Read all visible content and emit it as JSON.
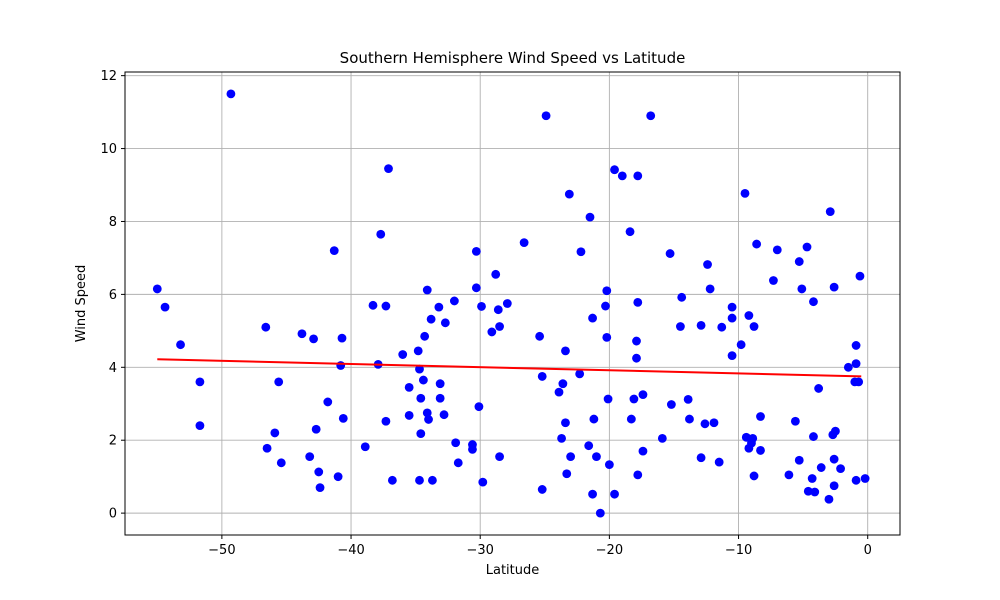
{
  "chart_data": {
    "type": "scatter",
    "title": "Southern Hemisphere Wind Speed vs Latitude",
    "xlabel": "Latitude",
    "ylabel": "Wind Speed",
    "xlim": [
      -57.5,
      2.5
    ],
    "ylim": [
      -0.6,
      12.1
    ],
    "xticks": [
      -50,
      -40,
      -30,
      -20,
      -10,
      0
    ],
    "yticks": [
      0,
      2,
      4,
      6,
      8,
      10,
      12
    ],
    "grid": true,
    "colors": {
      "points": "#0000ff",
      "regression": "#ff0000"
    },
    "regression": {
      "x": [
        -55,
        -0.5
      ],
      "y": [
        4.22,
        3.75
      ]
    },
    "points": [
      {
        "x": -55,
        "y": 6.15
      },
      {
        "x": -54.4,
        "y": 5.65
      },
      {
        "x": -53.2,
        "y": 4.62
      },
      {
        "x": -51.7,
        "y": 3.6
      },
      {
        "x": -51.7,
        "y": 2.4
      },
      {
        "x": -49.3,
        "y": 11.5
      },
      {
        "x": -46.6,
        "y": 5.1
      },
      {
        "x": -46.5,
        "y": 1.78
      },
      {
        "x": -45.9,
        "y": 2.2
      },
      {
        "x": -45.6,
        "y": 3.6
      },
      {
        "x": -45.4,
        "y": 1.38
      },
      {
        "x": -43.8,
        "y": 4.92
      },
      {
        "x": -43.2,
        "y": 1.55
      },
      {
        "x": -42.9,
        "y": 4.78
      },
      {
        "x": -42.7,
        "y": 2.3
      },
      {
        "x": -42.5,
        "y": 1.13
      },
      {
        "x": -42.4,
        "y": 0.7
      },
      {
        "x": -41.8,
        "y": 3.05
      },
      {
        "x": -41.3,
        "y": 7.2
      },
      {
        "x": -41.0,
        "y": 1.0
      },
      {
        "x": -40.8,
        "y": 4.05
      },
      {
        "x": -40.7,
        "y": 4.8
      },
      {
        "x": -40.6,
        "y": 2.6
      },
      {
        "x": -38.9,
        "y": 1.82
      },
      {
        "x": -38.3,
        "y": 5.7
      },
      {
        "x": -37.9,
        "y": 4.08
      },
      {
        "x": -37.7,
        "y": 7.65
      },
      {
        "x": -37.3,
        "y": 5.68
      },
      {
        "x": -37.3,
        "y": 2.52
      },
      {
        "x": -37.1,
        "y": 9.45
      },
      {
        "x": -36.8,
        "y": 0.9
      },
      {
        "x": -36.0,
        "y": 4.35
      },
      {
        "x": -35.5,
        "y": 3.45
      },
      {
        "x": -35.5,
        "y": 2.68
      },
      {
        "x": -34.8,
        "y": 4.45
      },
      {
        "x": -34.7,
        "y": 3.95
      },
      {
        "x": -34.6,
        "y": 2.18
      },
      {
        "x": -34.6,
        "y": 3.15
      },
      {
        "x": -34.7,
        "y": 0.9
      },
      {
        "x": -34.4,
        "y": 3.65
      },
      {
        "x": -34.3,
        "y": 4.85
      },
      {
        "x": -34.1,
        "y": 6.12
      },
      {
        "x": -34.1,
        "y": 2.75
      },
      {
        "x": -34.0,
        "y": 2.57
      },
      {
        "x": -33.8,
        "y": 5.32
      },
      {
        "x": -33.7,
        "y": 0.9
      },
      {
        "x": -33.2,
        "y": 5.65
      },
      {
        "x": -33.1,
        "y": 3.55
      },
      {
        "x": -33.1,
        "y": 3.15
      },
      {
        "x": -32.8,
        "y": 2.7
      },
      {
        "x": -32.7,
        "y": 5.22
      },
      {
        "x": -32.0,
        "y": 5.82
      },
      {
        "x": -31.9,
        "y": 1.93
      },
      {
        "x": -31.7,
        "y": 1.38
      },
      {
        "x": -30.6,
        "y": 1.88
      },
      {
        "x": -30.6,
        "y": 1.75
      },
      {
        "x": -30.3,
        "y": 6.18
      },
      {
        "x": -30.3,
        "y": 7.18
      },
      {
        "x": -30.1,
        "y": 2.92
      },
      {
        "x": -29.9,
        "y": 5.67
      },
      {
        "x": -29.8,
        "y": 0.85
      },
      {
        "x": -29.1,
        "y": 4.97
      },
      {
        "x": -28.8,
        "y": 6.55
      },
      {
        "x": -28.6,
        "y": 5.58
      },
      {
        "x": -28.5,
        "y": 5.12
      },
      {
        "x": -28.5,
        "y": 1.55
      },
      {
        "x": -27.9,
        "y": 5.75
      },
      {
        "x": -26.6,
        "y": 7.42
      },
      {
        "x": -25.4,
        "y": 4.85
      },
      {
        "x": -25.2,
        "y": 3.75
      },
      {
        "x": -25.2,
        "y": 0.65
      },
      {
        "x": -24.9,
        "y": 10.9
      },
      {
        "x": -23.9,
        "y": 3.32
      },
      {
        "x": -23.7,
        "y": 2.05
      },
      {
        "x": -23.6,
        "y": 3.55
      },
      {
        "x": -23.4,
        "y": 4.45
      },
      {
        "x": -23.4,
        "y": 2.48
      },
      {
        "x": -23.3,
        "y": 1.08
      },
      {
        "x": -23.1,
        "y": 8.75
      },
      {
        "x": -23.0,
        "y": 1.55
      },
      {
        "x": -22.3,
        "y": 3.82
      },
      {
        "x": -22.2,
        "y": 7.17
      },
      {
        "x": -21.6,
        "y": 1.85
      },
      {
        "x": -21.5,
        "y": 8.12
      },
      {
        "x": -21.3,
        "y": 5.35
      },
      {
        "x": -21.3,
        "y": 0.52
      },
      {
        "x": -21.2,
        "y": 2.58
      },
      {
        "x": -21.0,
        "y": 1.55
      },
      {
        "x": -20.7,
        "y": 0.0
      },
      {
        "x": -20.3,
        "y": 5.68
      },
      {
        "x": -20.2,
        "y": 6.1
      },
      {
        "x": -20.2,
        "y": 4.82
      },
      {
        "x": -20.1,
        "y": 3.13
      },
      {
        "x": -20.0,
        "y": 1.33
      },
      {
        "x": -19.6,
        "y": 9.42
      },
      {
        "x": -19.6,
        "y": 0.52
      },
      {
        "x": -19.0,
        "y": 9.25
      },
      {
        "x": -18.4,
        "y": 7.72
      },
      {
        "x": -18.3,
        "y": 2.58
      },
      {
        "x": -18.1,
        "y": 3.13
      },
      {
        "x": -17.9,
        "y": 4.25
      },
      {
        "x": -17.9,
        "y": 4.72
      },
      {
        "x": -17.8,
        "y": 5.78
      },
      {
        "x": -17.8,
        "y": 9.25
      },
      {
        "x": -17.8,
        "y": 1.05
      },
      {
        "x": -17.4,
        "y": 3.25
      },
      {
        "x": -17.4,
        "y": 1.7
      },
      {
        "x": -16.8,
        "y": 10.9
      },
      {
        "x": -15.9,
        "y": 2.05
      },
      {
        "x": -15.3,
        "y": 7.12
      },
      {
        "x": -15.2,
        "y": 2.98
      },
      {
        "x": -14.4,
        "y": 5.92
      },
      {
        "x": -14.5,
        "y": 5.12
      },
      {
        "x": -13.9,
        "y": 3.12
      },
      {
        "x": -13.8,
        "y": 2.58
      },
      {
        "x": -12.9,
        "y": 5.15
      },
      {
        "x": -12.9,
        "y": 1.52
      },
      {
        "x": -12.6,
        "y": 2.45
      },
      {
        "x": -12.4,
        "y": 6.82
      },
      {
        "x": -12.2,
        "y": 6.15
      },
      {
        "x": -11.9,
        "y": 2.48
      },
      {
        "x": -11.5,
        "y": 1.4
      },
      {
        "x": -11.3,
        "y": 5.1
      },
      {
        "x": -10.5,
        "y": 5.35
      },
      {
        "x": -10.5,
        "y": 5.65
      },
      {
        "x": -10.5,
        "y": 4.32
      },
      {
        "x": -9.8,
        "y": 4.62
      },
      {
        "x": -9.5,
        "y": 8.77
      },
      {
        "x": -9.4,
        "y": 2.08
      },
      {
        "x": -9.2,
        "y": 1.78
      },
      {
        "x": -9.2,
        "y": 5.42
      },
      {
        "x": -9.0,
        "y": 1.92
      },
      {
        "x": -8.9,
        "y": 2.05
      },
      {
        "x": -8.8,
        "y": 5.12
      },
      {
        "x": -8.8,
        "y": 1.02
      },
      {
        "x": -8.6,
        "y": 7.38
      },
      {
        "x": -8.3,
        "y": 2.65
      },
      {
        "x": -8.3,
        "y": 1.72
      },
      {
        "x": -7.3,
        "y": 6.38
      },
      {
        "x": -7.0,
        "y": 7.22
      },
      {
        "x": -6.1,
        "y": 1.05
      },
      {
        "x": -5.6,
        "y": 2.52
      },
      {
        "x": -5.3,
        "y": 6.9
      },
      {
        "x": -5.3,
        "y": 1.45
      },
      {
        "x": -5.1,
        "y": 6.15
      },
      {
        "x": -4.7,
        "y": 7.3
      },
      {
        "x": -4.6,
        "y": 0.6
      },
      {
        "x": -4.3,
        "y": 0.95
      },
      {
        "x": -4.2,
        "y": 2.1
      },
      {
        "x": -4.2,
        "y": 5.8
      },
      {
        "x": -4.1,
        "y": 0.58
      },
      {
        "x": -3.8,
        "y": 3.42
      },
      {
        "x": -3.6,
        "y": 1.25
      },
      {
        "x": -3.0,
        "y": 0.38
      },
      {
        "x": -2.9,
        "y": 8.27
      },
      {
        "x": -2.7,
        "y": 2.15
      },
      {
        "x": -2.6,
        "y": 0.75
      },
      {
        "x": -2.6,
        "y": 6.2
      },
      {
        "x": -2.6,
        "y": 1.48
      },
      {
        "x": -2.5,
        "y": 2.25
      },
      {
        "x": -2.1,
        "y": 1.22
      },
      {
        "x": -1.5,
        "y": 4.0
      },
      {
        "x": -1.0,
        "y": 3.6
      },
      {
        "x": -0.9,
        "y": 0.9
      },
      {
        "x": -0.9,
        "y": 4.1
      },
      {
        "x": -0.9,
        "y": 4.6
      },
      {
        "x": -0.7,
        "y": 3.6
      },
      {
        "x": -0.6,
        "y": 6.5
      },
      {
        "x": -0.2,
        "y": 0.95
      }
    ]
  }
}
